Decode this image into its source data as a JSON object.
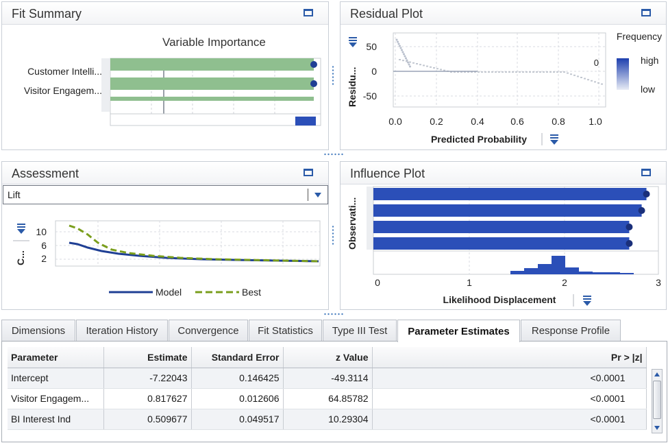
{
  "fit_summary": {
    "title": "Fit Summary",
    "chart_title": "Variable Importance",
    "bars": [
      {
        "label": "Customer Intelli...",
        "value": 0.99
      },
      {
        "label": "Visitor Engagem...",
        "value": 0.99
      },
      {
        "label": "",
        "value": 0.99
      }
    ]
  },
  "residual_plot": {
    "title": "Residual Plot",
    "ylabel": "Residu...",
    "xlabel": "Predicted Probability",
    "y_ticks": [
      "50",
      "0",
      "-50"
    ],
    "x_ticks": [
      "0.0",
      "0.2",
      "0.4",
      "0.6",
      "0.8",
      "1.0"
    ],
    "legend_title": "Frequency",
    "legend_high": "high",
    "legend_low": "low",
    "zero_label": "0"
  },
  "assessment": {
    "title": "Assessment",
    "dropdown_value": "Lift",
    "ylabel": "C...",
    "y_ticks": [
      "10",
      "6",
      "2"
    ],
    "legend_model": "Model",
    "legend_best": "Best",
    "colors": {
      "model": "#1f3f94",
      "best": "#7a9e1c"
    }
  },
  "influence_plot": {
    "title": "Influence Plot",
    "ylabel": "Observati...",
    "xlabel": "Likelihood Displacement",
    "x_ticks": [
      "0",
      "1",
      "2",
      "3"
    ],
    "bars": [
      2.9,
      2.85,
      2.72,
      2.72
    ]
  },
  "tabs": [
    {
      "label": "Dimensions"
    },
    {
      "label": "Iteration History"
    },
    {
      "label": "Convergence"
    },
    {
      "label": "Fit Statistics"
    },
    {
      "label": "Type III Test"
    },
    {
      "label": "Parameter Estimates",
      "active": true
    },
    {
      "label": "Response Profile"
    }
  ],
  "table": {
    "headers": [
      "Parameter",
      "Estimate",
      "Standard Error",
      "z Value",
      "Pr > |z|"
    ],
    "rows": [
      [
        "Intercept",
        "-7.22043",
        "0.146425",
        "-49.3114",
        "<0.0001"
      ],
      [
        "Visitor Engagem...",
        "0.817627",
        "0.012606",
        "64.85782",
        "<0.0001"
      ],
      [
        "BI Interest Ind",
        "0.509677",
        "0.049517",
        "10.29304",
        "<0.0001"
      ]
    ]
  },
  "colors": {
    "accent": "#2a5aa8",
    "bar_green": "#8fbf8f",
    "bar_blue": "#2b4fb8"
  }
}
